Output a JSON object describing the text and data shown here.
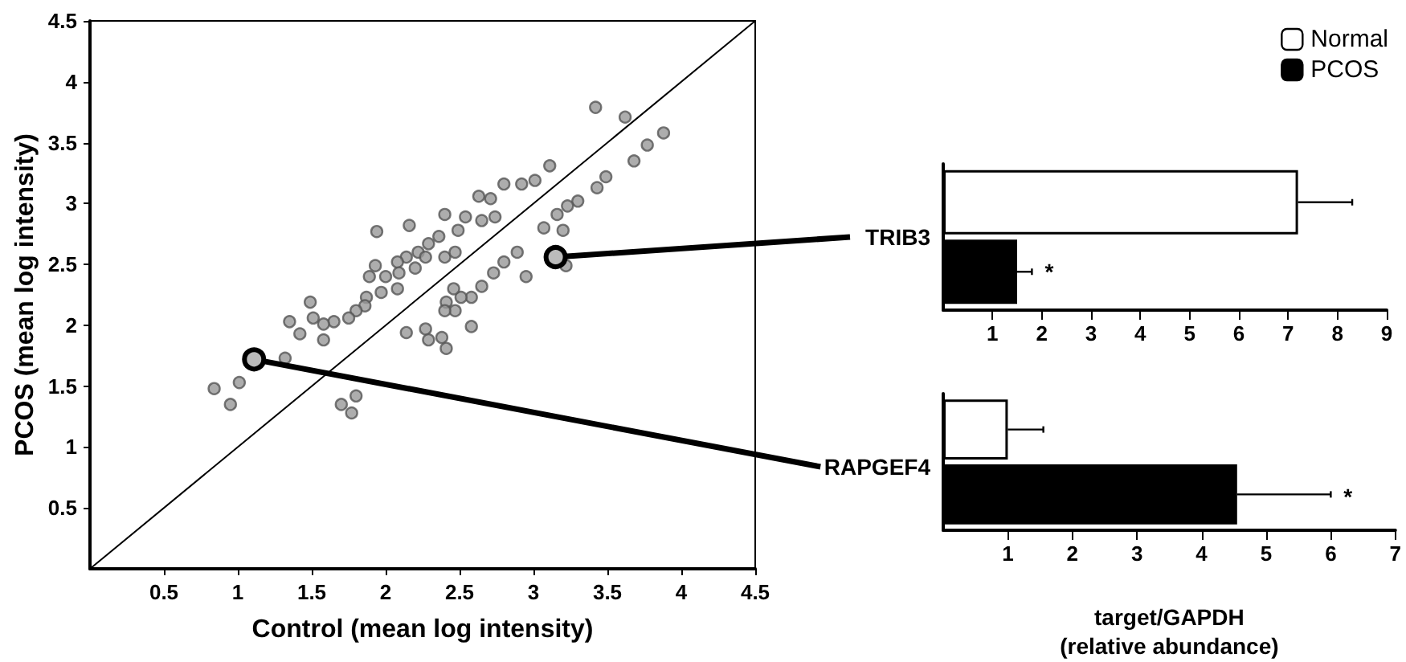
{
  "chart_data": [
    {
      "type": "scatter",
      "xlabel": "Control (mean log intensity)",
      "ylabel": "PCOS (mean log intensity)",
      "xlim": [
        0,
        4.5
      ],
      "ylim": [
        0,
        4.5
      ],
      "xticks": [
        0.5,
        1,
        1.5,
        2,
        2.5,
        3,
        3.5,
        4,
        4.5
      ],
      "yticks": [
        0.5,
        1,
        1.5,
        2,
        2.5,
        3,
        3.5,
        4,
        4.5
      ],
      "grid": false,
      "marker": "circle",
      "annotations": [
        {
          "text": "TRIB3",
          "x": 3.15,
          "y": 2.56
        },
        {
          "text": "RAPGEF4",
          "x": 1.11,
          "y": 1.72
        }
      ],
      "series": [
        {
          "type": "scatter",
          "color": "#999999",
          "x": [
            3.42,
            3.62,
            3.88,
            3.77,
            3.68,
            3.11,
            3.01,
            2.92,
            2.8,
            3.49,
            3.43,
            3.3,
            3.23,
            3.16,
            3.07,
            3.2,
            2.71,
            2.63,
            2.4,
            2.54,
            2.49,
            2.16,
            1.94,
            2.65,
            2.74,
            2.36,
            2.29,
            2.22,
            2.27,
            2.14,
            2.08,
            2.2,
            2.09,
            2.0,
            1.93,
            1.89,
            2.08,
            1.97,
            1.87,
            1.86,
            1.8,
            1.75,
            1.65,
            1.58,
            1.51,
            1.35,
            1.42,
            1.49,
            1.58,
            2.4,
            2.47,
            2.89,
            2.8,
            2.73,
            2.95,
            2.65,
            2.58,
            2.51,
            2.41,
            2.47,
            2.4,
            2.58,
            2.14,
            2.27,
            2.29,
            2.38,
            2.41,
            2.46,
            0.84,
            0.95,
            1.01,
            1.32,
            1.7,
            1.77,
            1.8,
            3.22
          ],
          "values": [
            3.79,
            3.71,
            3.58,
            3.48,
            3.35,
            3.31,
            3.19,
            3.16,
            3.16,
            3.22,
            3.13,
            3.02,
            2.98,
            2.91,
            2.8,
            2.78,
            3.04,
            3.06,
            2.91,
            2.89,
            2.78,
            2.82,
            2.77,
            2.86,
            2.89,
            2.73,
            2.67,
            2.6,
            2.56,
            2.56,
            2.52,
            2.47,
            2.43,
            2.4,
            2.49,
            2.4,
            2.3,
            2.27,
            2.23,
            2.16,
            2.12,
            2.06,
            2.03,
            2.01,
            2.06,
            2.03,
            1.93,
            2.19,
            1.88,
            2.56,
            2.6,
            2.6,
            2.52,
            2.43,
            2.4,
            2.32,
            2.23,
            2.23,
            2.19,
            2.12,
            2.12,
            1.99,
            1.94,
            1.97,
            1.88,
            1.9,
            1.81,
            2.3,
            1.48,
            1.35,
            1.53,
            1.73,
            1.35,
            1.28,
            1.42,
            2.49
          ]
        },
        {
          "type": "line",
          "color": "#000000",
          "marker": "none",
          "x": [
            0,
            4.5
          ],
          "values": [
            0,
            4.5
          ]
        }
      ]
    },
    {
      "type": "bar",
      "orientation": "horizontal",
      "categories": [
        null
      ],
      "xlim": [
        0,
        9
      ],
      "xticks": [
        1,
        2,
        3,
        4,
        5,
        6,
        7,
        8,
        9
      ],
      "legend": "top right",
      "grid": false,
      "annotations": [
        "*"
      ],
      "series": [
        {
          "name": "Normal",
          "color": "#ffffff",
          "values": [
            7.2
          ],
          "errors": [
            1.1
          ]
        },
        {
          "name": "PCOS",
          "color": "#000000",
          "values": [
            1.5
          ],
          "errors": [
            0.3
          ]
        }
      ]
    },
    {
      "type": "bar",
      "orientation": "horizontal",
      "categories": [
        null
      ],
      "xlim": [
        0,
        7
      ],
      "xticks": [
        1,
        2,
        3,
        4,
        5,
        6,
        7
      ],
      "xlabel": "target/GAPDH\n(relative abundance)",
      "grid": false,
      "annotations": [
        "*"
      ],
      "series": [
        {
          "color": "#ffffff",
          "values": [
            1.0
          ],
          "errors": [
            0.55
          ]
        },
        {
          "color": "#000000",
          "values": [
            4.55
          ],
          "errors": [
            1.45
          ]
        }
      ]
    }
  ]
}
